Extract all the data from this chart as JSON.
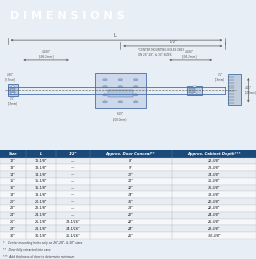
{
  "title": "D I M E N S I O N S",
  "title_bg": "#1a4a7a",
  "title_color": "#ffffff",
  "table_headers": [
    "Size",
    "L",
    "1/2\"",
    "Approx. Door Conceal**",
    "Approx. Cabinet Depth***"
  ],
  "table_header_bg": "#1a4a7a",
  "table_header_color": "#ffffff",
  "table_rows": [
    [
      "12\"",
      "12-1/8\"",
      "—",
      "8\"",
      "12-3/8\""
    ],
    [
      "13\"",
      "13-1/8\"",
      "—",
      "9\"",
      "13-3/8\""
    ],
    [
      "14\"",
      "14-1/8\"",
      "—",
      "10\"",
      "14-3/8\""
    ],
    [
      "15\"",
      "15-1/8\"",
      "—",
      "11\"",
      "15-3/8\""
    ],
    [
      "16\"",
      "16-1/8\"",
      "—",
      "12\"",
      "16-3/8\""
    ],
    [
      "18\"",
      "18-1/8\"",
      "—",
      "14\"",
      "18-3/8\""
    ],
    [
      "20\"",
      "20-1/8\"",
      "—",
      "16\"",
      "20-3/8\""
    ],
    [
      "22\"",
      "22-1/8\"",
      "—",
      "18\"",
      "22-3/8\""
    ],
    [
      "24\"",
      "24-1/8\"",
      "—",
      "20\"",
      "24-3/8\""
    ],
    [
      "26\"",
      "26-1/8\"",
      "13-1/16\"",
      "22\"",
      "26-3/8\""
    ],
    [
      "28\"",
      "28-1/8\"",
      "14-1/16\"",
      "24\"",
      "28-3/8\""
    ],
    [
      "30\"",
      "30-1/8\"",
      "15-1/16\"",
      "26\"",
      "30-3/8\""
    ]
  ],
  "row_colors": [
    "#e8edf3",
    "#f5f7fa"
  ],
  "footnotes": [
    "*    Center mounting holes only on 26\",28\", & 30\" sizes",
    "**   Door fully retracted into case",
    "***  Add thickness of door to determine minimum"
  ],
  "footnote_color": "#333333",
  "bg_color": "#e8eef5",
  "line_color": "#4a6fa5",
  "dim_line_color": "#555555"
}
